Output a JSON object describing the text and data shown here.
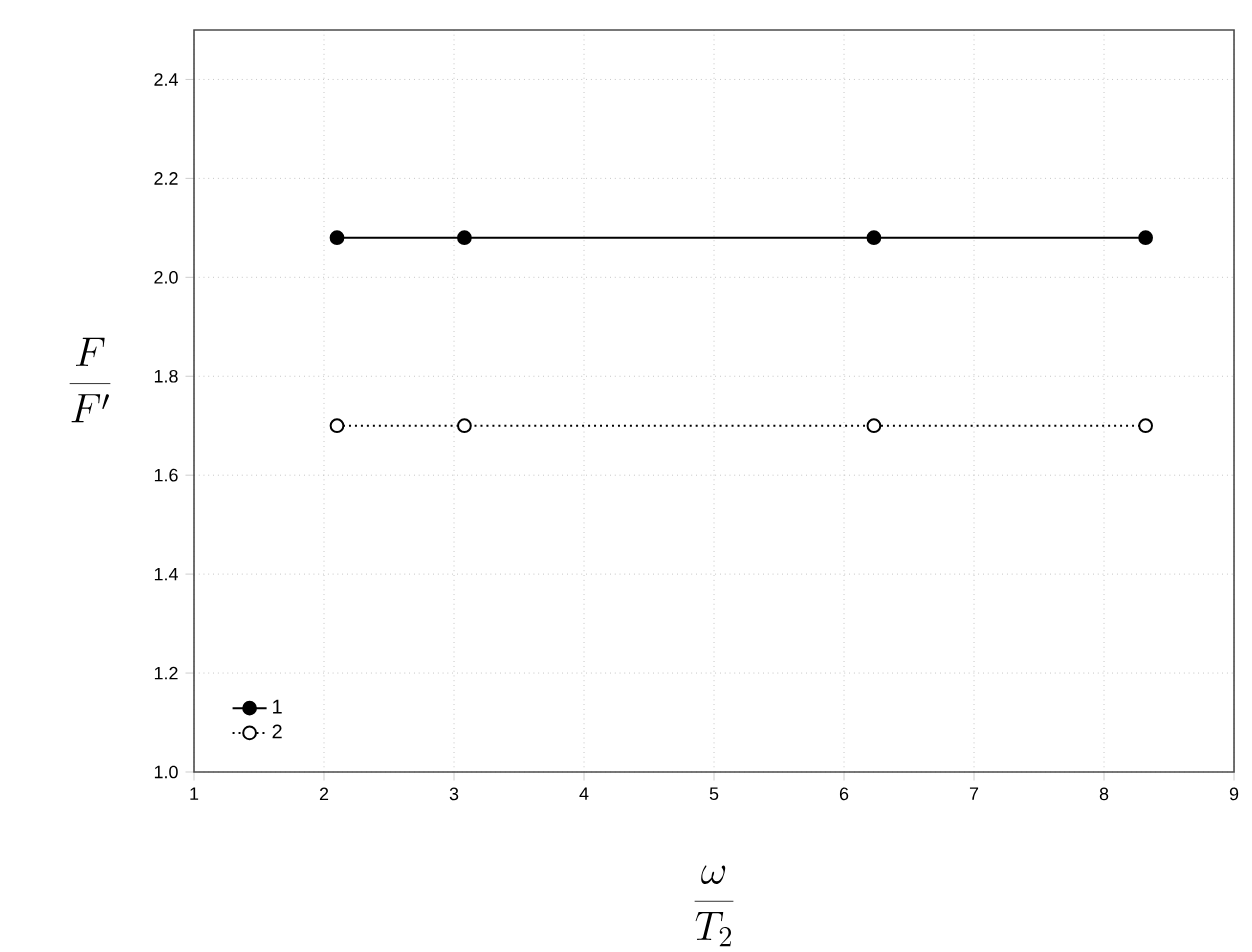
{
  "chart_data": {
    "type": "line",
    "xlabel": "\\frac{\\omega}{T_2}",
    "ylabel": "\\frac{F}{F'}",
    "x": [
      2.1,
      3.08,
      6.23,
      8.32
    ],
    "series": [
      {
        "name": "1",
        "color": "#000000",
        "values": [
          2.08,
          2.08,
          2.08,
          2.08
        ],
        "line_style": "solid",
        "marker": "circle"
      },
      {
        "name": "2",
        "color": "#000000",
        "values": [
          1.7,
          1.7,
          1.7,
          1.7
        ],
        "line_style": "dotted",
        "marker": "circle"
      }
    ],
    "xlim": [
      1,
      9
    ],
    "ylim": [
      1.0,
      2.5
    ],
    "xticks": [
      1,
      2,
      3,
      4,
      5,
      6,
      7,
      8,
      9
    ],
    "yticks": [
      {
        "value": 1.0,
        "label": "1.0"
      },
      {
        "value": 1.2,
        "label": "1.2"
      },
      {
        "value": 1.4,
        "label": "1.4"
      },
      {
        "value": 1.6,
        "label": "1.6"
      },
      {
        "value": 1.8,
        "label": "1.8"
      },
      {
        "value": 2.0,
        "label": "2.0"
      },
      {
        "value": 2.2,
        "label": "2.2"
      },
      {
        "value": 2.4,
        "label": "2.4"
      }
    ],
    "grid": true,
    "legend": "bottom left"
  }
}
